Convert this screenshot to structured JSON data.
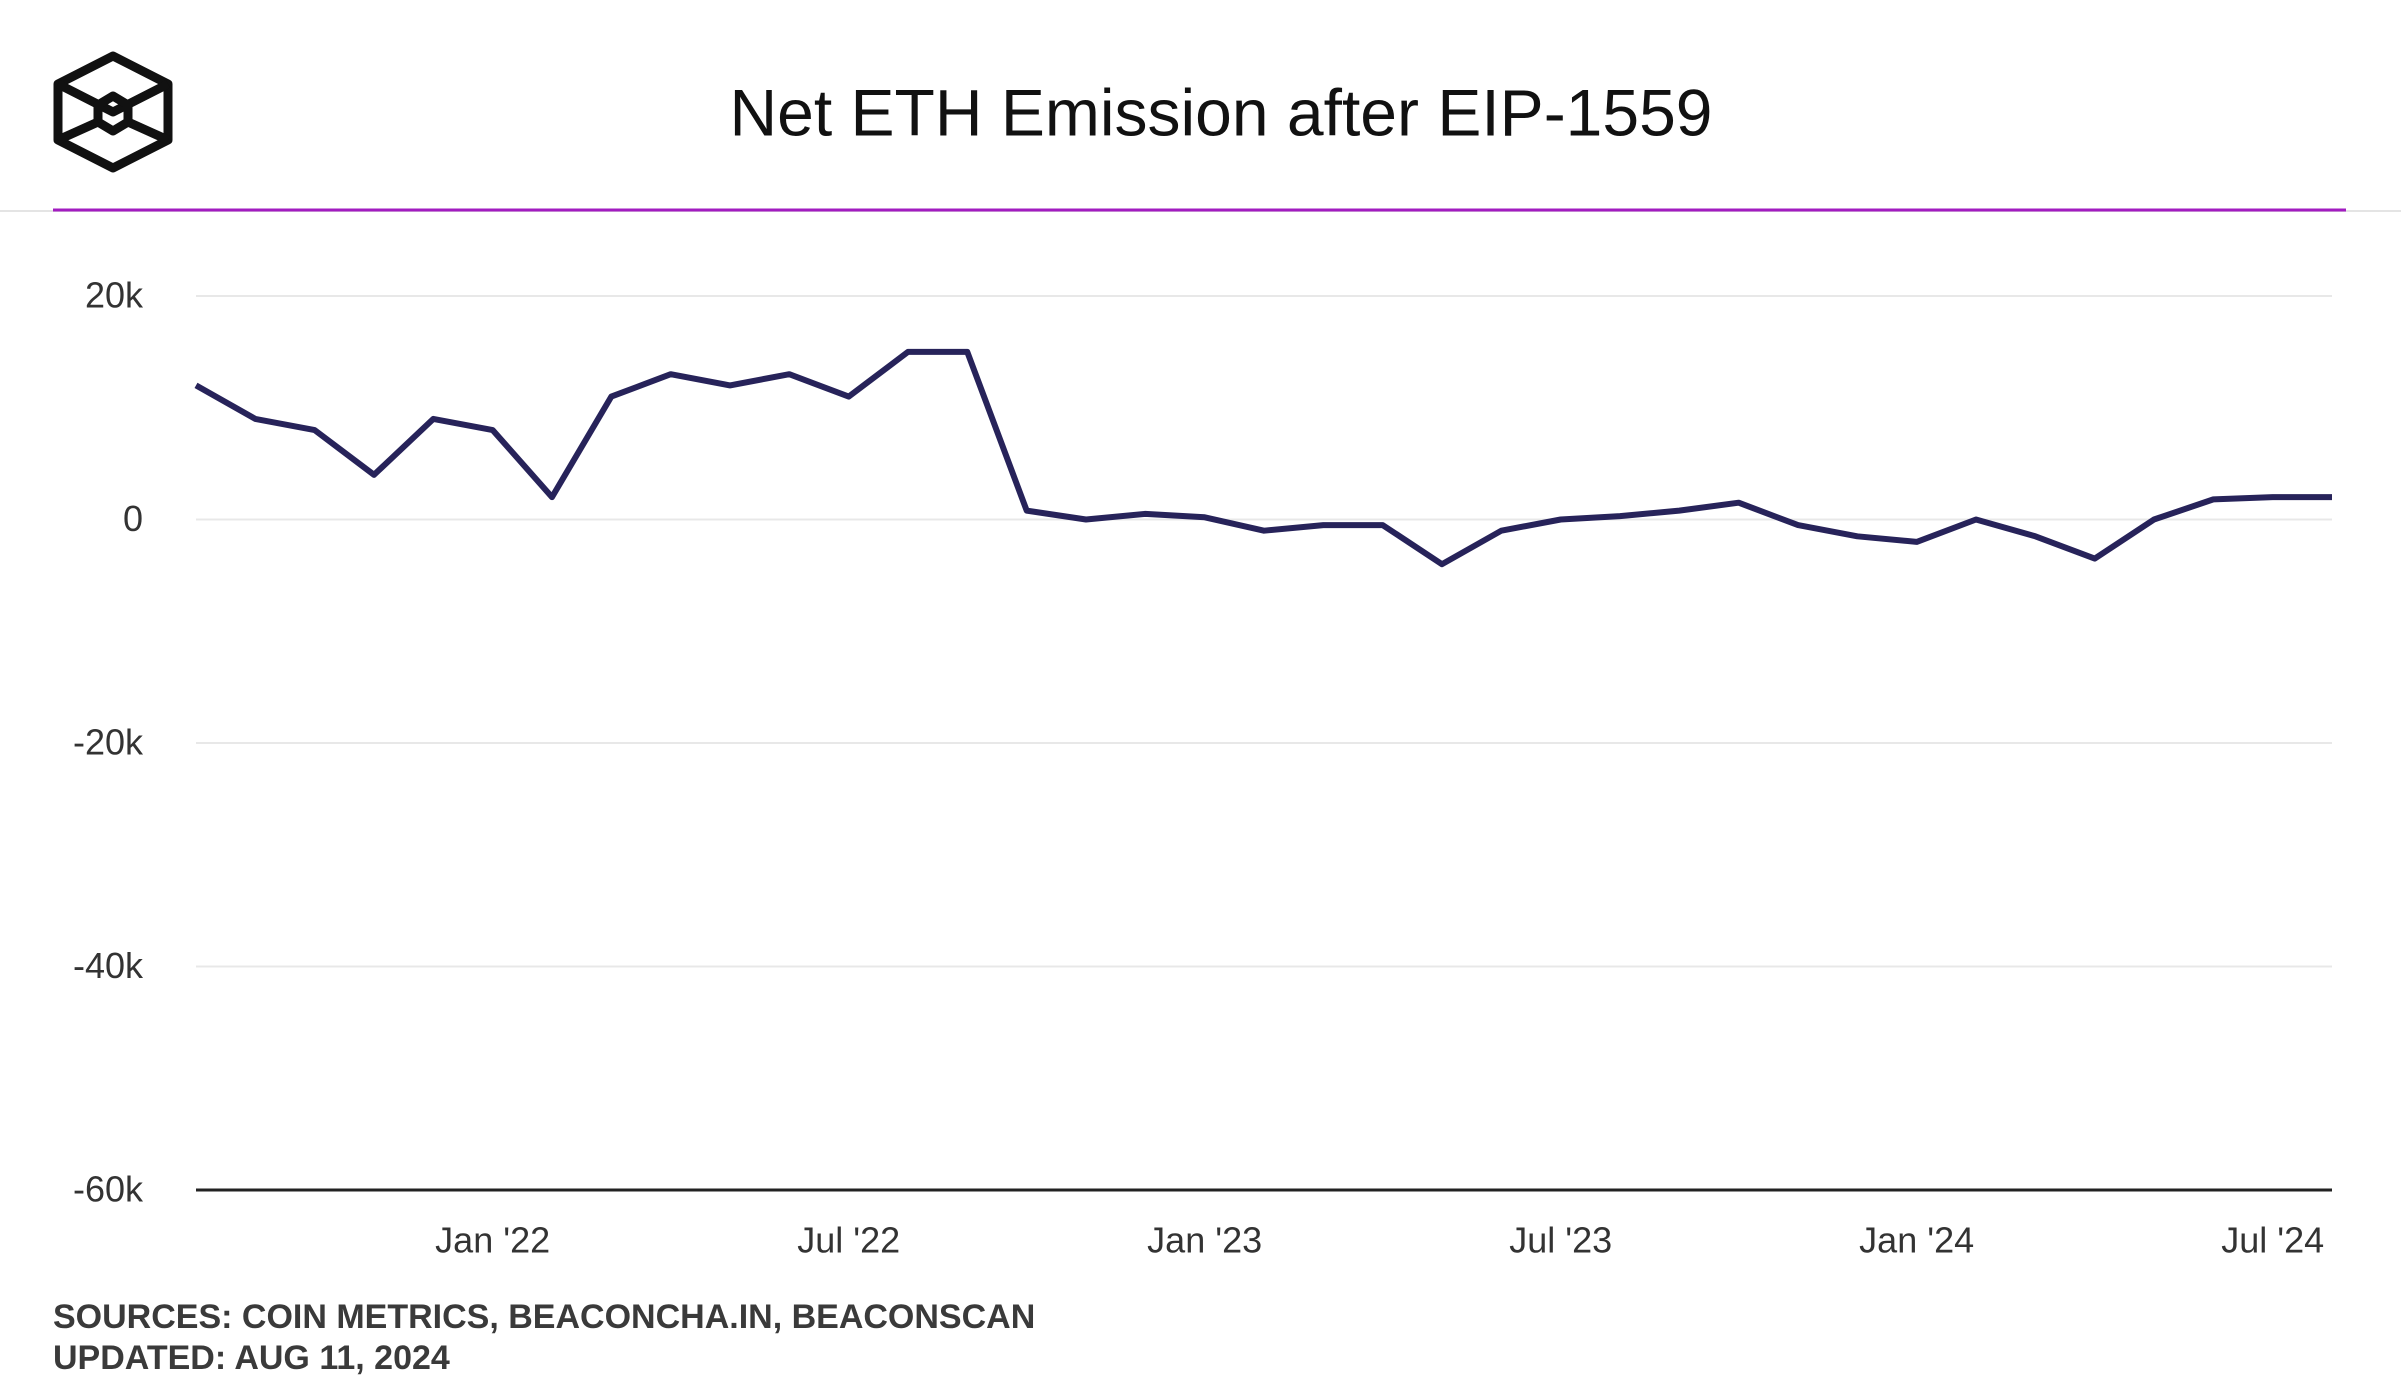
{
  "chart_data": {
    "type": "line",
    "title": "Net ETH Emission after EIP-1559",
    "sources": "SOURCES: COIN METRICS, BEACONCHA.IN, BEACONSCAN",
    "updated": "UPDATED: AUG 11, 2024",
    "x": [
      "2021-08",
      "2021-09",
      "2021-10",
      "2021-11",
      "2021-12",
      "2022-01",
      "2022-02",
      "2022-03",
      "2022-04",
      "2022-05",
      "2022-06",
      "2022-07",
      "2022-08",
      "2022-09",
      "2022-10",
      "2022-11",
      "2022-12",
      "2023-01",
      "2023-02",
      "2023-03",
      "2023-04",
      "2023-05",
      "2023-06",
      "2023-07",
      "2023-08",
      "2023-09",
      "2023-10",
      "2023-11",
      "2023-12",
      "2024-01",
      "2024-02",
      "2024-03",
      "2024-04",
      "2024-05",
      "2024-06",
      "2024-07",
      "2024-08"
    ],
    "series": [
      {
        "name": "Net ETH Emission",
        "color": "#27235a",
        "values": [
          12000,
          9000,
          8000,
          4000,
          9000,
          8000,
          2000,
          11000,
          13000,
          12000,
          13000,
          11000,
          15000,
          15000,
          800,
          0,
          500,
          200,
          -1000,
          -500,
          -500,
          -4000,
          -1000,
          0,
          300,
          800,
          1500,
          -500,
          -1500,
          -2000,
          0,
          -1500,
          -3500,
          0,
          1800,
          2000,
          2000
        ]
      }
    ],
    "xlim": [
      "2021-08",
      "2024-08"
    ],
    "xticks": [
      {
        "value": "2022-01",
        "label": "Jan '22"
      },
      {
        "value": "2022-07",
        "label": "Jul '22"
      },
      {
        "value": "2023-01",
        "label": "Jan '23"
      },
      {
        "value": "2023-07",
        "label": "Jul '23"
      },
      {
        "value": "2024-01",
        "label": "Jan '24"
      },
      {
        "value": "2024-07",
        "label": "Jul '24"
      }
    ],
    "ylim": [
      -60000,
      20000
    ],
    "yticks": [
      {
        "value": -60000,
        "label": "-60k"
      },
      {
        "value": -40000,
        "label": "-40k"
      },
      {
        "value": -20000,
        "label": "-20k"
      },
      0,
      {
        "value": 20000,
        "label": "20k"
      }
    ],
    "grid": true
  }
}
